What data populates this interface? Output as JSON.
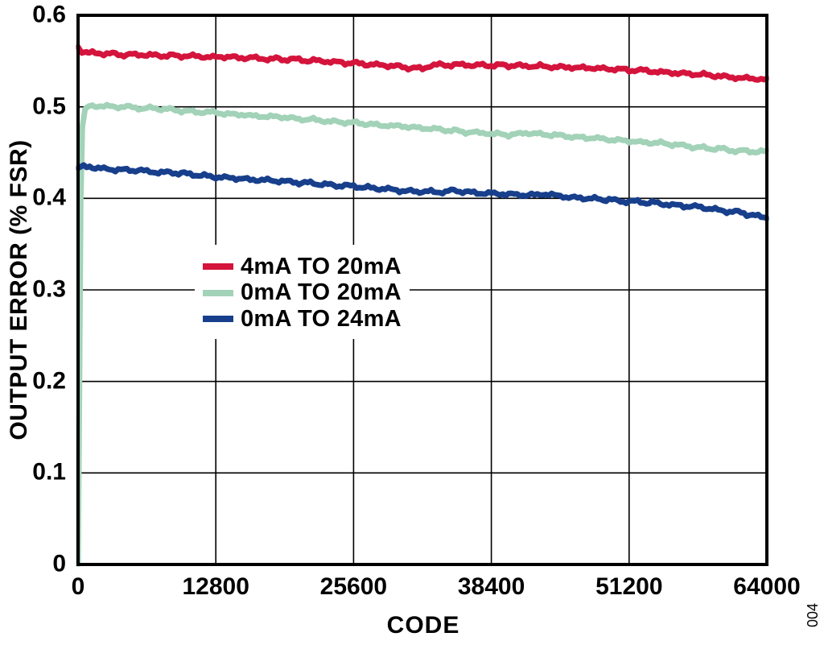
{
  "figure": {
    "number": "004"
  },
  "chart_data": {
    "type": "line",
    "title": "",
    "xlabel": "CODE",
    "ylabel": "OUTPUT ERROR (% FSR)",
    "xlim": [
      0,
      64000
    ],
    "ylim": [
      0,
      0.6
    ],
    "x_ticks": [
      0,
      12800,
      25600,
      38400,
      51200,
      64000
    ],
    "x_tick_labels": [
      "0",
      "12800",
      "25600",
      "38400",
      "51200",
      "64000"
    ],
    "y_ticks": [
      0,
      0.1,
      0.2,
      0.3,
      0.4,
      0.5,
      0.6
    ],
    "y_tick_labels": [
      "0",
      "0.1",
      "0.2",
      "0.3",
      "0.4",
      "0.5",
      "0.6"
    ],
    "grid": true,
    "grid_color": "#000000",
    "axis_color": "#000000",
    "legend_position": "inside-left",
    "series": [
      {
        "name": "4mA TO 20mA",
        "color": "#d4143c",
        "points": [
          [
            0,
            0.5655
          ],
          [
            350,
            0.5615
          ],
          [
            900,
            0.5595
          ],
          [
            1920,
            0.5585
          ],
          [
            3840,
            0.5575
          ],
          [
            6400,
            0.5565
          ],
          [
            9600,
            0.5555
          ],
          [
            12800,
            0.5545
          ],
          [
            16000,
            0.5535
          ],
          [
            19200,
            0.552
          ],
          [
            22400,
            0.55
          ],
          [
            25600,
            0.5475
          ],
          [
            28800,
            0.545
          ],
          [
            30400,
            0.543
          ],
          [
            32000,
            0.5415
          ],
          [
            32700,
            0.5455
          ],
          [
            35200,
            0.546
          ],
          [
            38400,
            0.5455
          ],
          [
            41600,
            0.5445
          ],
          [
            44800,
            0.5435
          ],
          [
            48000,
            0.542
          ],
          [
            51200,
            0.5405
          ],
          [
            54400,
            0.538
          ],
          [
            57600,
            0.5355
          ],
          [
            60800,
            0.5325
          ],
          [
            64000,
            0.5295
          ]
        ]
      },
      {
        "name": "0mA TO 20mA",
        "color": "#a2d2b8",
        "points": [
          [
            0,
            0.0
          ],
          [
            120,
            0.18
          ],
          [
            250,
            0.4
          ],
          [
            400,
            0.478
          ],
          [
            650,
            0.497
          ],
          [
            1000,
            0.5005
          ],
          [
            1800,
            0.5015
          ],
          [
            3200,
            0.5005
          ],
          [
            6400,
            0.4985
          ],
          [
            9600,
            0.496
          ],
          [
            12800,
            0.4935
          ],
          [
            16000,
            0.4905
          ],
          [
            19200,
            0.488
          ],
          [
            22400,
            0.4855
          ],
          [
            25600,
            0.4825
          ],
          [
            28800,
            0.4795
          ],
          [
            32000,
            0.477
          ],
          [
            35200,
            0.4735
          ],
          [
            38400,
            0.4705
          ],
          [
            40300,
            0.4695
          ],
          [
            41600,
            0.4715
          ],
          [
            43500,
            0.4695
          ],
          [
            44800,
            0.468
          ],
          [
            48000,
            0.4655
          ],
          [
            51200,
            0.4625
          ],
          [
            54400,
            0.46
          ],
          [
            57600,
            0.456
          ],
          [
            60800,
            0.4525
          ],
          [
            64000,
            0.4505
          ]
        ]
      },
      {
        "name": "0mA TO 24mA",
        "color": "#173f8c",
        "points": [
          [
            0,
            0.4335
          ],
          [
            960,
            0.4345
          ],
          [
            3200,
            0.432
          ],
          [
            6400,
            0.4295
          ],
          [
            9600,
            0.427
          ],
          [
            12800,
            0.4235
          ],
          [
            16000,
            0.421
          ],
          [
            19200,
            0.4185
          ],
          [
            22400,
            0.4155
          ],
          [
            25600,
            0.413
          ],
          [
            28800,
            0.41
          ],
          [
            32000,
            0.4075
          ],
          [
            33600,
            0.4065
          ],
          [
            35200,
            0.4085
          ],
          [
            36800,
            0.406
          ],
          [
            38400,
            0.4055
          ],
          [
            40000,
            0.4045
          ],
          [
            41600,
            0.4035
          ],
          [
            43200,
            0.4045
          ],
          [
            44800,
            0.4025
          ],
          [
            46400,
            0.4005
          ],
          [
            48000,
            0.3995
          ],
          [
            51200,
            0.3965
          ],
          [
            52800,
            0.396
          ],
          [
            54400,
            0.394
          ],
          [
            56000,
            0.3925
          ],
          [
            57600,
            0.391
          ],
          [
            59200,
            0.3875
          ],
          [
            60800,
            0.3855
          ],
          [
            62400,
            0.3825
          ],
          [
            64000,
            0.3795
          ]
        ]
      }
    ]
  }
}
